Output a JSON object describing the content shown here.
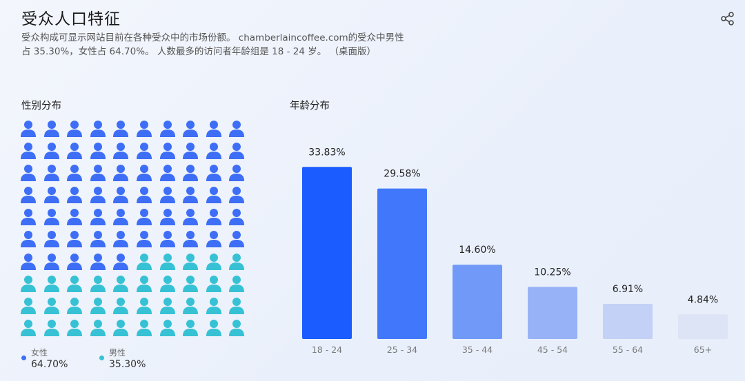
{
  "header": {
    "title": "受众人口特征",
    "description": "受众构成可显示网站目前在各种受众中的市场份额。 chamberlaincoffee.com的受众中男性占 35.30%，女性占 64.70%。 人数最多的访问者年龄组是 18 - 24 岁。 （桌面版）",
    "share_icon": "share-icon"
  },
  "colors": {
    "female": "#3d6ef5",
    "male": "#36c2d4"
  },
  "gender": {
    "label": "性别分布",
    "female_label": "女性",
    "female_pct": "64.70%",
    "male_label": "男性",
    "male_pct": "35.30%",
    "icon": "person-icon",
    "total_icons": 100,
    "female_icons": 65
  },
  "age": {
    "label": "年龄分布"
  },
  "chart_data": {
    "type": "bar",
    "categories": [
      "18 - 24",
      "25 - 34",
      "35 - 44",
      "45 - 54",
      "55 - 64",
      "65+"
    ],
    "values": [
      33.83,
      29.58,
      14.6,
      10.25,
      6.91,
      4.84
    ],
    "value_labels": [
      "33.83%",
      "29.58%",
      "14.60%",
      "10.25%",
      "6.91%",
      "4.84%"
    ],
    "bar_colors": [
      "#1a5cff",
      "#4178fb",
      "#7099f8",
      "#97b2f6",
      "#c3d1f6",
      "#dde4f6"
    ],
    "ylim": [
      0,
      34
    ],
    "grid": false
  }
}
